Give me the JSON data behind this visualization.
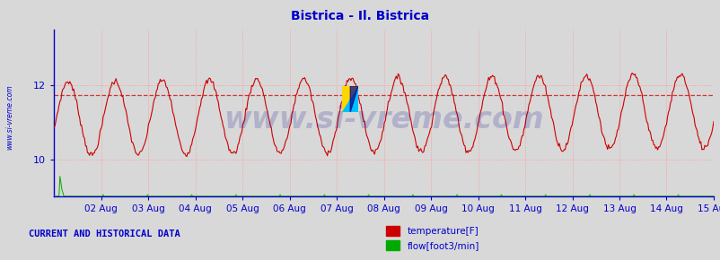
{
  "title": "Bistrica - Il. Bistrica",
  "title_color": "#0000cc",
  "bg_color": "#d8d8d8",
  "plot_bg_color": "#d8d8d8",
  "axis_color": "#0000cc",
  "grid_color": "#ff9999",
  "watermark_text": "www.si-vreme.com",
  "watermark_color": "#00008b",
  "watermark_alpha": 0.18,
  "ylabel_text": "www.si-vreme.com",
  "ylabel_color": "#0000cc",
  "temp_color": "#cc0000",
  "flow_color": "#00aa00",
  "dashed_line_color": "#cc0000",
  "dashed_line_y": 11.75,
  "ylim_min": 9.0,
  "ylim_max": 13.5,
  "yticks": [
    10,
    12
  ],
  "n_points": 672,
  "temp_base": 11.1,
  "temp_amplitude": 1.0,
  "footer_text": "CURRENT AND HISTORICAL DATA",
  "footer_color": "#0000cc",
  "legend_temp_label": "temperature[F]",
  "legend_flow_label": "flow[foot3/min]",
  "legend_color": "#0000cc",
  "x_tick_labels": [
    "02 Aug",
    "03 Aug",
    "04 Aug",
    "05 Aug",
    "06 Aug",
    "07 Aug",
    "08 Aug",
    "09 Aug",
    "10 Aug",
    "11 Aug",
    "12 Aug",
    "13 Aug",
    "14 Aug",
    "15 Aug"
  ]
}
